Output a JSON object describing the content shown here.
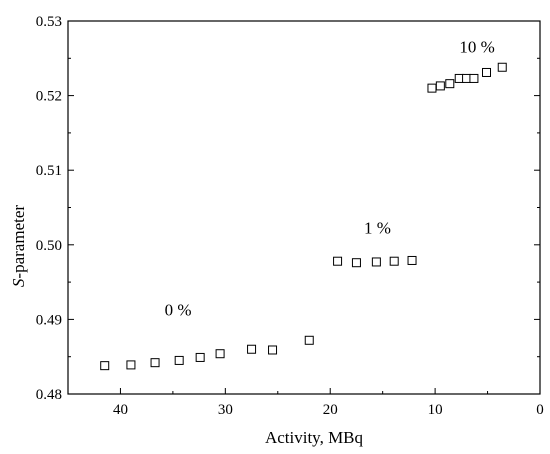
{
  "chart_data": {
    "type": "scatter",
    "title": "",
    "xlabel": "Activity, MBq",
    "ylabel_italic": "S",
    "ylabel_rest": "-parameter",
    "xlim": [
      45,
      0
    ],
    "ylim": [
      0.48,
      0.53
    ],
    "x_reversed": true,
    "x_ticks": [
      40,
      30,
      20,
      10,
      0
    ],
    "x_tick_labels": [
      "40",
      "30",
      "20",
      "10",
      "0"
    ],
    "y_ticks": [
      0.48,
      0.49,
      0.5,
      0.51,
      0.52,
      0.53
    ],
    "y_tick_labels": [
      "0.48",
      "0.49",
      "0.50",
      "0.51",
      "0.52",
      "0.53"
    ],
    "grid": false,
    "marker": "open-square",
    "color": "#000000",
    "series": [
      {
        "points": [
          [
            41.5,
            0.4838
          ],
          [
            39.0,
            0.4839
          ],
          [
            36.7,
            0.4842
          ],
          [
            34.4,
            0.4845
          ],
          [
            32.4,
            0.4849
          ],
          [
            30.5,
            0.4854
          ],
          [
            27.5,
            0.486
          ],
          [
            25.5,
            0.4859
          ],
          [
            22.0,
            0.4872
          ]
        ]
      },
      {
        "points": [
          [
            19.3,
            0.4978
          ],
          [
            17.5,
            0.4976
          ],
          [
            15.6,
            0.4977
          ],
          [
            13.9,
            0.4978
          ],
          [
            12.2,
            0.4979
          ]
        ]
      },
      {
        "points": [
          [
            10.3,
            0.521
          ],
          [
            9.5,
            0.5213
          ],
          [
            8.6,
            0.5216
          ],
          [
            7.7,
            0.5223
          ],
          [
            7.0,
            0.5223
          ],
          [
            6.3,
            0.5223
          ],
          [
            5.1,
            0.5231
          ],
          [
            3.6,
            0.5238
          ]
        ]
      }
    ],
    "annotations": [
      {
        "text": "0 %",
        "x": 34.5,
        "y": 0.4905
      },
      {
        "text": "1 %",
        "x": 15.5,
        "y": 0.5015
      },
      {
        "text": "10 %",
        "x": 6.0,
        "y": 0.5258
      }
    ]
  }
}
